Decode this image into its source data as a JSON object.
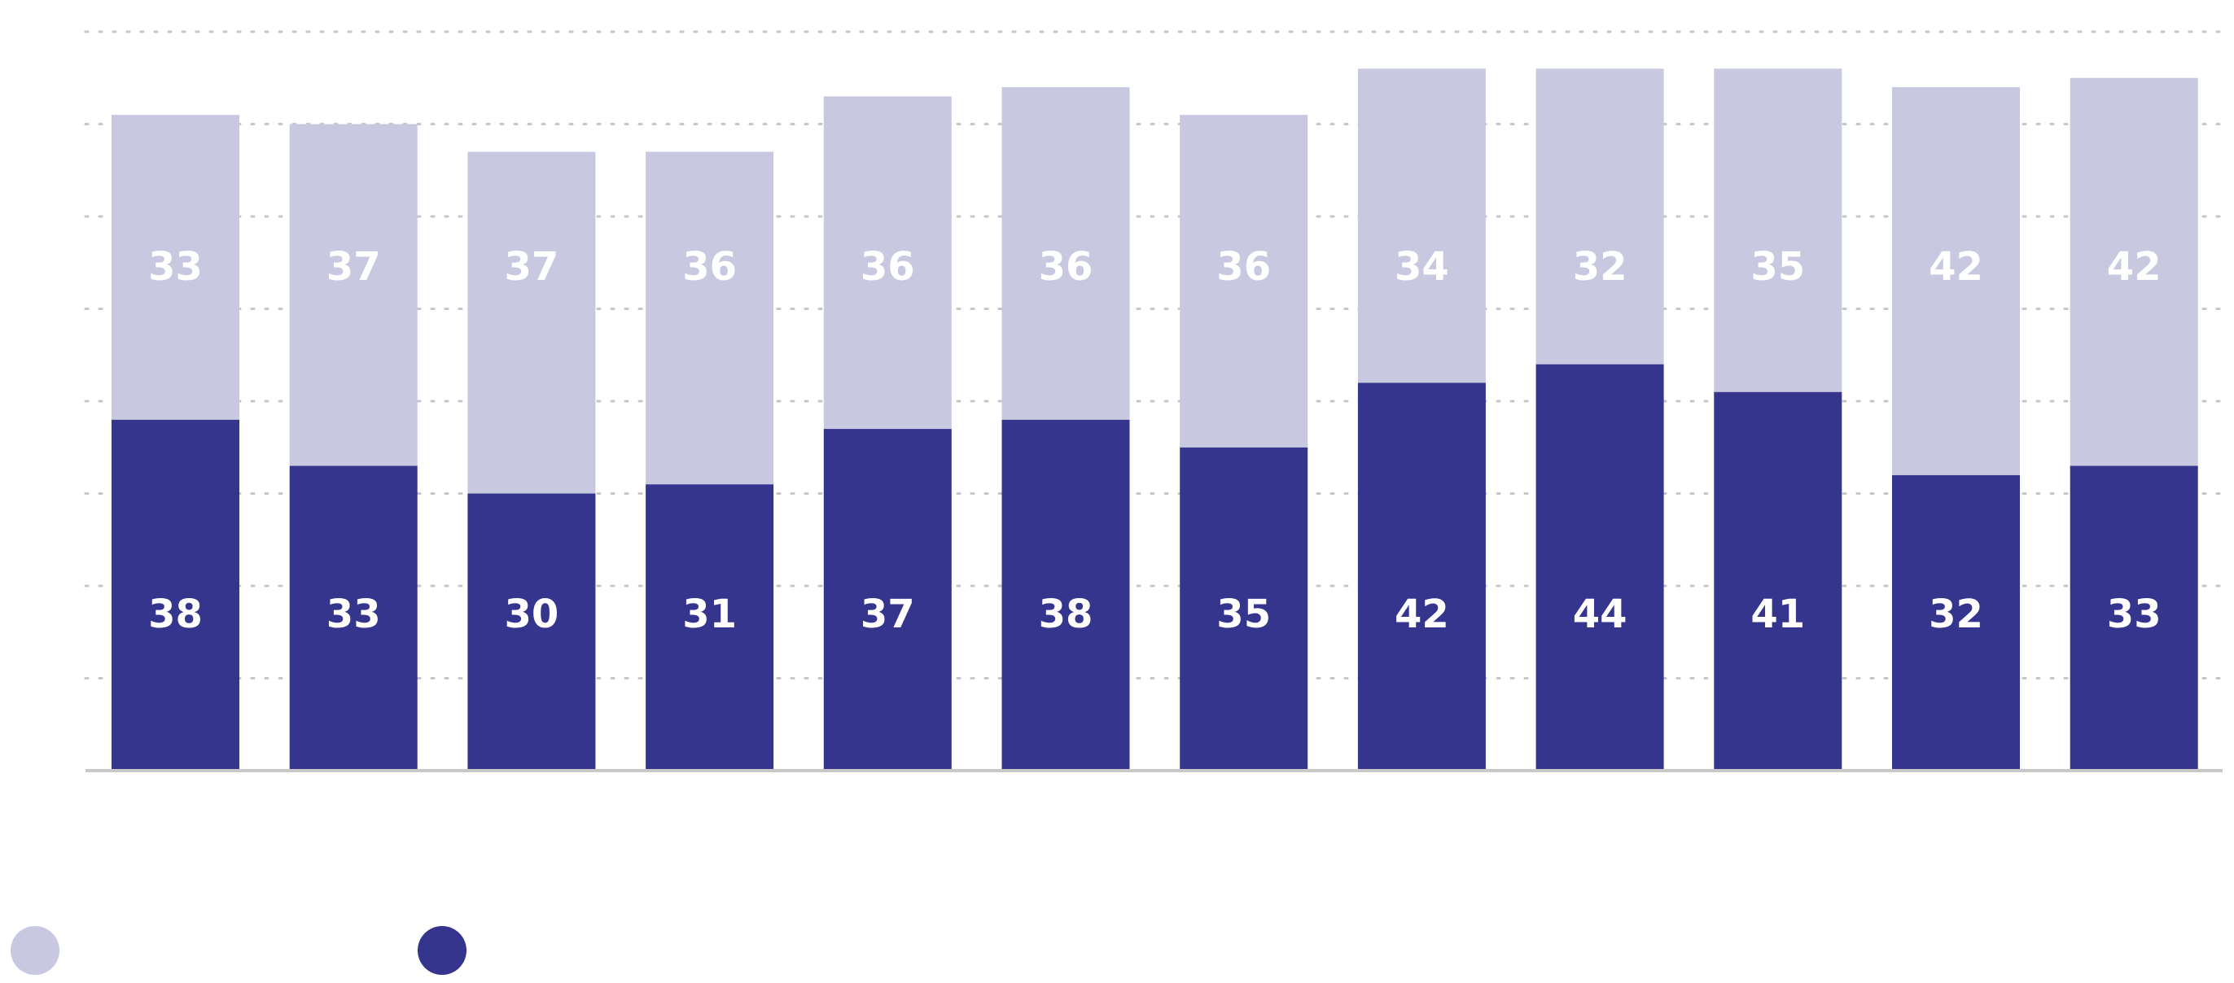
{
  "chart_data": {
    "type": "bar",
    "stacked": true,
    "title": "",
    "xlabel": "",
    "ylabel": "",
    "categories": [
      "",
      "",
      "",
      "",
      "",
      "",
      "",
      "",
      "",
      "",
      "",
      ""
    ],
    "ylim": [
      0,
      80
    ],
    "grid": true,
    "legend_placement": "bottom-left",
    "series": [
      {
        "values": [
          38,
          33,
          30,
          31,
          37,
          38,
          35,
          42,
          44,
          41,
          32,
          33
        ],
        "color": "#35358e"
      },
      {
        "values": [
          33,
          37,
          37,
          36,
          36,
          36,
          36,
          34,
          32,
          35,
          42,
          42
        ],
        "color": "#c8c8e1"
      }
    ],
    "legend": [
      {
        "series": 1,
        "color": "#c8c8e1"
      },
      {
        "series": 0,
        "color": "#35358e"
      }
    ],
    "gridline_color": "#c6c6c6",
    "axis_color": "#c8c8c8"
  }
}
